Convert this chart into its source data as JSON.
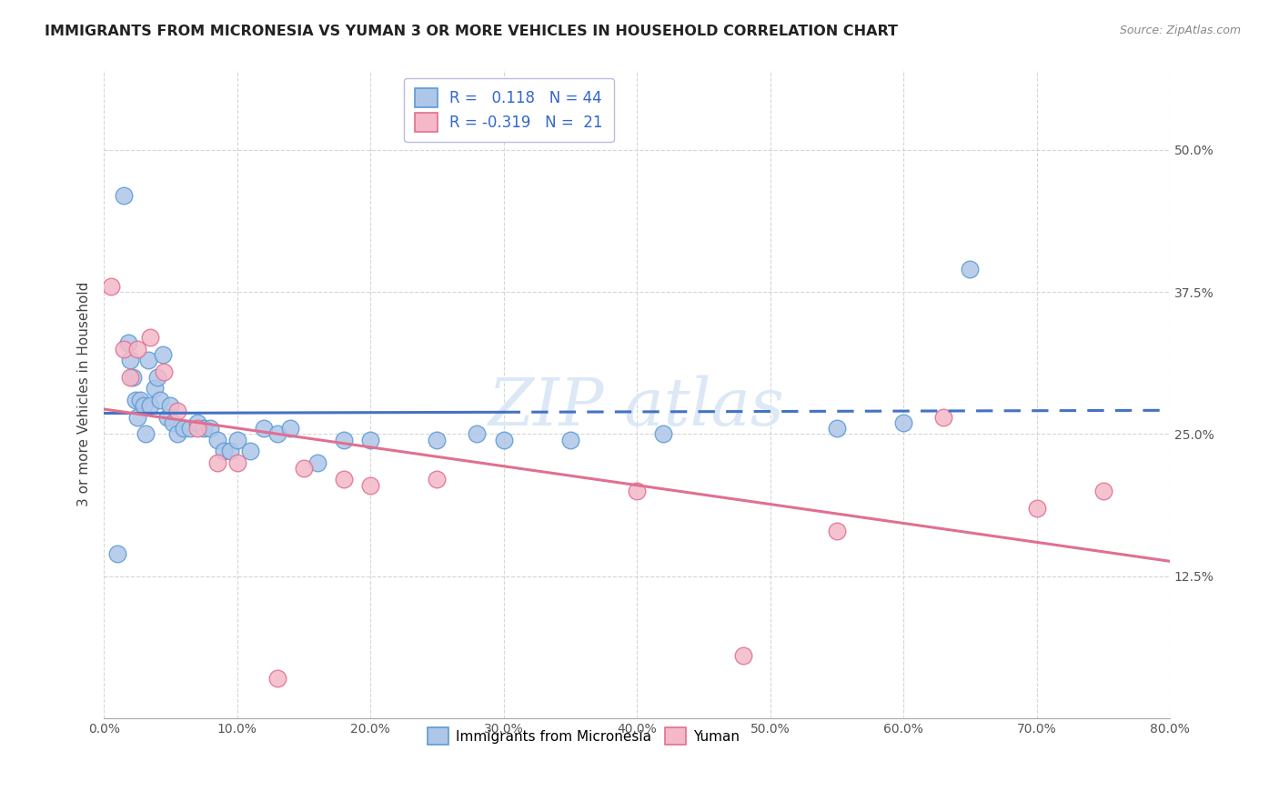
{
  "title": "IMMIGRANTS FROM MICRONESIA VS YUMAN 3 OR MORE VEHICLES IN HOUSEHOLD CORRELATION CHART",
  "source": "Source: ZipAtlas.com",
  "ylabel": "3 or more Vehicles in Household",
  "x_min": 0.0,
  "x_max": 80.0,
  "y_min": 0.0,
  "y_max": 57.0,
  "y_ticks": [
    12.5,
    25.0,
    37.5,
    50.0
  ],
  "x_ticks": [
    0.0,
    10.0,
    20.0,
    30.0,
    40.0,
    50.0,
    60.0,
    70.0,
    80.0
  ],
  "legend_blue_r": "0.118",
  "legend_blue_n": "44",
  "legend_pink_r": "-0.319",
  "legend_pink_n": "21",
  "legend_label_blue": "Immigrants from Micronesia",
  "legend_label_pink": "Yuman",
  "blue_fill_color": "#aec6e8",
  "blue_edge_color": "#5b9bd5",
  "pink_fill_color": "#f4b8c8",
  "pink_edge_color": "#e07090",
  "blue_line_color": "#4472c4",
  "pink_line_color": "#e07090",
  "watermark_color": "#dce8f5",
  "blue_scatter_x": [
    1.0,
    1.5,
    1.8,
    2.0,
    2.2,
    2.4,
    2.5,
    2.7,
    3.0,
    3.1,
    3.3,
    3.5,
    3.8,
    4.0,
    4.2,
    4.4,
    4.8,
    5.0,
    5.2,
    5.5,
    6.0,
    6.5,
    7.0,
    7.5,
    8.0,
    8.5,
    9.0,
    9.5,
    10.0,
    11.0,
    12.0,
    13.0,
    14.0,
    16.0,
    18.0,
    20.0,
    25.0,
    28.0,
    30.0,
    35.0,
    42.0,
    55.0,
    60.0,
    65.0
  ],
  "blue_scatter_y": [
    14.5,
    46.0,
    33.0,
    31.5,
    30.0,
    28.0,
    26.5,
    28.0,
    27.5,
    25.0,
    31.5,
    27.5,
    29.0,
    30.0,
    28.0,
    32.0,
    26.5,
    27.5,
    26.0,
    25.0,
    25.5,
    25.5,
    26.0,
    25.5,
    25.5,
    24.5,
    23.5,
    23.5,
    24.5,
    23.5,
    25.5,
    25.0,
    25.5,
    22.5,
    24.5,
    24.5,
    24.5,
    25.0,
    24.5,
    24.5,
    25.0,
    25.5,
    26.0,
    39.5
  ],
  "pink_scatter_x": [
    0.5,
    1.5,
    2.0,
    2.5,
    3.5,
    4.5,
    5.5,
    7.0,
    8.5,
    10.0,
    13.0,
    15.0,
    18.0,
    20.0,
    25.0,
    40.0,
    48.0,
    55.0,
    63.0,
    70.0,
    75.0
  ],
  "pink_scatter_y": [
    38.0,
    32.5,
    30.0,
    32.5,
    33.5,
    30.5,
    27.0,
    25.5,
    22.5,
    22.5,
    3.5,
    22.0,
    21.0,
    20.5,
    21.0,
    20.0,
    5.5,
    16.5,
    26.5,
    18.5,
    20.0
  ]
}
